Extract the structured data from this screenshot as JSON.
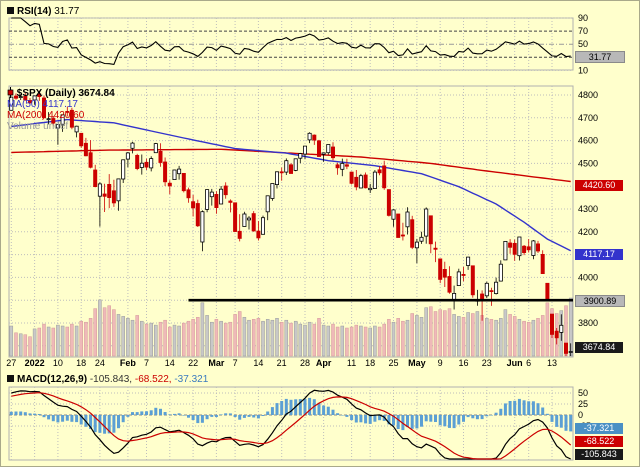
{
  "rsi_panel": {
    "label": "RSI(14)",
    "value": "31.77",
    "axis_ticks": [
      90,
      70,
      50,
      30,
      10
    ],
    "box_value": "31.77",
    "overbought": 70,
    "oversold": 30
  },
  "main_panel": {
    "symbol": "$SPX (Daily)",
    "last_value": "3674.84",
    "ma50_label": "MA(50) 4117.17",
    "ma200_label": "MA(200) 4420.60",
    "volume_label": "Volume undef",
    "axis_ticks": [
      4800,
      4700,
      4600,
      4500,
      4400,
      4300,
      4200,
      4100,
      4000,
      3900,
      3800,
      3700
    ],
    "boxes": {
      "ma200": "4420.60",
      "ma50": "4117.17",
      "trendline": "3900.89",
      "last": "3674.84"
    }
  },
  "macd_panel": {
    "label": "MACD(12,26,9)",
    "macd_value": "-105.843,",
    "signal_value": "-68.522,",
    "hist_value": "-37.321",
    "axis_ticks": [
      50,
      25,
      0,
      -25
    ],
    "boxes": {
      "hist": "-37.321",
      "signal": "-68.522",
      "macd": "-105.843"
    }
  },
  "x_axis": {
    "ticks": [
      {
        "label": "27",
        "index": 0
      },
      {
        "label": "2022",
        "index": 5
      },
      {
        "label": "10",
        "index": 10
      },
      {
        "label": "18",
        "index": 15
      },
      {
        "label": "24",
        "index": 19
      },
      {
        "label": "Feb",
        "index": 25
      },
      {
        "label": "7",
        "index": 29
      },
      {
        "label": "14",
        "index": 34
      },
      {
        "label": "22",
        "index": 39
      },
      {
        "label": "Mar",
        "index": 44
      },
      {
        "label": "7",
        "index": 48
      },
      {
        "label": "14",
        "index": 53
      },
      {
        "label": "21",
        "index": 58
      },
      {
        "label": "28",
        "index": 63
      },
      {
        "label": "Apr",
        "index": 67
      },
      {
        "label": "11",
        "index": 73
      },
      {
        "label": "18",
        "index": 77
      },
      {
        "label": "25",
        "index": 82
      },
      {
        "label": "May",
        "index": 87
      },
      {
        "label": "9",
        "index": 92
      },
      {
        "label": "16",
        "index": 97
      },
      {
        "label": "23",
        "index": 102
      },
      {
        "label": "Jun",
        "index": 108
      },
      {
        "label": "6",
        "index": 111
      },
      {
        "label": "13",
        "index": 116
      }
    ]
  },
  "chart_data": {
    "type": "candlestick",
    "symbol": "$SPX",
    "timeframe": "Daily",
    "last_close": 3674.84,
    "ylim": [
      3650,
      4830
    ],
    "indicators": {
      "rsi": {
        "period": 14,
        "current": 31.77
      },
      "ma50": {
        "current": 4117.17
      },
      "ma200": {
        "current": 4420.6
      },
      "macd": {
        "params": [
          12,
          26,
          9
        ],
        "macd": -105.843,
        "signal": -68.522,
        "hist": -37.321
      }
    },
    "colors": {
      "background": "#ffffcc",
      "candle_up": "#ffffff",
      "candle_down": "#cc0000",
      "volume_up": "#c8c8c8",
      "volume_down": "#efb9b9",
      "ma50": "#3333cc",
      "ma200": "#cc0000",
      "macd_hist": "#5b9fd4",
      "macd_line": "#000000",
      "macd_signal": "#cc0000"
    },
    "annotation": {
      "level": 3900,
      "start_index": 38
    },
    "ma50_keyframes": [
      [
        0,
        4662
      ],
      [
        12,
        4692
      ],
      [
        22,
        4678
      ],
      [
        35,
        4620
      ],
      [
        48,
        4565
      ],
      [
        59,
        4545
      ],
      [
        68,
        4512
      ],
      [
        78,
        4490
      ],
      [
        88,
        4455
      ],
      [
        96,
        4398
      ],
      [
        104,
        4322
      ],
      [
        110,
        4242
      ],
      [
        115,
        4168
      ],
      [
        120,
        4117.17
      ]
    ],
    "ma200_keyframes": [
      [
        0,
        4548
      ],
      [
        20,
        4558
      ],
      [
        45,
        4562
      ],
      [
        60,
        4545
      ],
      [
        75,
        4528
      ],
      [
        90,
        4500
      ],
      [
        100,
        4472
      ],
      [
        110,
        4446
      ],
      [
        120,
        4420.6
      ]
    ],
    "candles": [
      [
        4733,
        4792,
        4733,
        4791
      ],
      [
        4795,
        4807,
        4780,
        4786
      ],
      [
        4789,
        4804,
        4778,
        4793
      ],
      [
        4794,
        4809,
        4775,
        4778
      ],
      [
        4776,
        4787,
        4760,
        4766
      ],
      [
        4778,
        4797,
        4758,
        4796
      ],
      [
        4804,
        4819,
        4774,
        4793
      ],
      [
        4787,
        4798,
        4700,
        4700
      ],
      [
        4693,
        4725,
        4671,
        4696
      ],
      [
        4697,
        4708,
        4663,
        4677
      ],
      [
        4655,
        4673,
        4582,
        4670
      ],
      [
        4669,
        4714,
        4638,
        4713
      ],
      [
        4728,
        4749,
        4706,
        4726
      ],
      [
        4733,
        4744,
        4650,
        4659
      ],
      [
        4638,
        4665,
        4614,
        4663
      ],
      [
        4632,
        4633,
        4568,
        4577
      ],
      [
        4588,
        4612,
        4531,
        4533
      ],
      [
        4547,
        4602,
        4478,
        4483
      ],
      [
        4471,
        4494,
        4395,
        4398
      ],
      [
        4356,
        4417,
        4223,
        4410
      ],
      [
        4366,
        4411,
        4287,
        4356
      ],
      [
        4408,
        4453,
        4304,
        4350
      ],
      [
        4380,
        4428,
        4309,
        4327
      ],
      [
        4336,
        4432,
        4292,
        4432
      ],
      [
        4432,
        4516,
        4414,
        4516
      ],
      [
        4519,
        4550,
        4483,
        4546
      ],
      [
        4566,
        4595,
        4544,
        4589
      ],
      [
        4535,
        4542,
        4470,
        4477
      ],
      [
        4482,
        4539,
        4451,
        4501
      ],
      [
        4505,
        4521,
        4471,
        4484
      ],
      [
        4480,
        4531,
        4465,
        4521
      ],
      [
        4547,
        4590,
        4547,
        4587
      ],
      [
        4553,
        4588,
        4485,
        4504
      ],
      [
        4506,
        4526,
        4401,
        4419
      ],
      [
        4413,
        4426,
        4365,
        4401
      ],
      [
        4429,
        4472,
        4429,
        4471
      ],
      [
        4455,
        4489,
        4429,
        4475
      ],
      [
        4456,
        4456,
        4373,
        4380
      ],
      [
        4384,
        4394,
        4327,
        4349
      ],
      [
        4332,
        4362,
        4267,
        4305
      ],
      [
        4324,
        4341,
        4221,
        4226
      ],
      [
        4155,
        4294,
        4115,
        4288
      ],
      [
        4298,
        4385,
        4286,
        4385
      ],
      [
        4354,
        4388,
        4315,
        4374
      ],
      [
        4364,
        4378,
        4279,
        4306
      ],
      [
        4322,
        4401,
        4322,
        4387
      ],
      [
        4401,
        4417,
        4345,
        4363
      ],
      [
        4335,
        4342,
        4285,
        4329
      ],
      [
        4327,
        4327,
        4199,
        4201
      ],
      [
        4202,
        4277,
        4158,
        4171
      ],
      [
        4223,
        4288,
        4223,
        4278
      ],
      [
        4252,
        4269,
        4210,
        4260
      ],
      [
        4280,
        4291,
        4200,
        4204
      ],
      [
        4203,
        4247,
        4162,
        4173
      ],
      [
        4189,
        4271,
        4188,
        4262
      ],
      [
        4288,
        4358,
        4251,
        4358
      ],
      [
        4346,
        4412,
        4336,
        4412
      ],
      [
        4407,
        4465,
        4390,
        4463
      ],
      [
        4463,
        4482,
        4424,
        4461
      ],
      [
        4462,
        4522,
        4449,
        4512
      ],
      [
        4494,
        4501,
        4456,
        4456
      ],
      [
        4469,
        4520,
        4466,
        4520
      ],
      [
        4523,
        4546,
        4501,
        4543
      ],
      [
        4541,
        4576,
        4518,
        4576
      ],
      [
        4603,
        4637,
        4589,
        4632
      ],
      [
        4624,
        4627,
        4581,
        4602
      ],
      [
        4599,
        4603,
        4530,
        4530
      ],
      [
        4540,
        4548,
        4507,
        4546
      ],
      [
        4547,
        4583,
        4539,
        4583
      ],
      [
        4572,
        4593,
        4514,
        4525
      ],
      [
        4494,
        4503,
        4450,
        4481
      ],
      [
        4474,
        4521,
        4444,
        4500
      ],
      [
        4494,
        4520,
        4475,
        4488
      ],
      [
        4462,
        4464,
        4408,
        4413
      ],
      [
        4439,
        4471,
        4382,
        4397
      ],
      [
        4392,
        4454,
        4392,
        4446
      ],
      [
        4449,
        4460,
        4390,
        4393
      ],
      [
        4385,
        4410,
        4370,
        4391
      ],
      [
        4390,
        4471,
        4390,
        4462
      ],
      [
        4472,
        4488,
        4448,
        4459
      ],
      [
        4489,
        4512,
        4384,
        4393
      ],
      [
        4385,
        4385,
        4267,
        4272
      ],
      [
        4255,
        4299,
        4222,
        4296
      ],
      [
        4278,
        4278,
        4175,
        4175
      ],
      [
        4186,
        4240,
        4162,
        4184
      ],
      [
        4222,
        4308,
        4188,
        4287
      ],
      [
        4253,
        4270,
        4124,
        4132
      ],
      [
        4130,
        4169,
        4062,
        4155
      ],
      [
        4159,
        4200,
        4147,
        4176
      ],
      [
        4181,
        4307,
        4148,
        4300
      ],
      [
        4270,
        4270,
        4106,
        4147
      ],
      [
        4128,
        4157,
        4067,
        4123
      ],
      [
        4081,
        4081,
        3975,
        3991
      ],
      [
        4035,
        4069,
        3958,
        4001
      ],
      [
        4004,
        4049,
        3928,
        3935
      ],
      [
        3903,
        3964,
        3859,
        3930
      ],
      [
        3964,
        4038,
        3963,
        4024
      ],
      [
        4013,
        4046,
        3983,
        4008
      ],
      [
        4052,
        4090,
        4033,
        4089
      ],
      [
        4051,
        4051,
        3911,
        3924
      ],
      [
        3899,
        3945,
        3876,
        3900
      ],
      [
        3927,
        3943,
        3810,
        3901
      ],
      [
        3919,
        3981,
        3909,
        3974
      ],
      [
        3942,
        3955,
        3875,
        3941
      ],
      [
        3929,
        3999,
        3925,
        3979
      ],
      [
        3984,
        4075,
        3984,
        4058
      ],
      [
        4077,
        4158,
        4077,
        4158
      ],
      [
        4151,
        4168,
        4104,
        4132
      ],
      [
        4149,
        4166,
        4073,
        4101
      ],
      [
        4095,
        4177,
        4074,
        4177
      ],
      [
        4137,
        4142,
        4098,
        4109
      ],
      [
        4134,
        4168,
        4109,
        4121
      ],
      [
        4096,
        4164,
        4080,
        4160
      ],
      [
        4147,
        4160,
        4107,
        4116
      ],
      [
        4101,
        4119,
        4017,
        4017
      ],
      [
        3974,
        3975,
        3900,
        3901
      ],
      [
        3839,
        3839,
        3734,
        3750
      ],
      [
        3764,
        3778,
        3706,
        3735
      ],
      [
        3759,
        3838,
        3722,
        3790
      ],
      [
        3712,
        3712,
        3639,
        3667
      ],
      [
        3672,
        3711,
        3637,
        3675
      ]
    ],
    "volume": [
      3.1,
      2.4,
      2.3,
      2.2,
      2.0,
      2.8,
      2.9,
      3.3,
      3.0,
      2.9,
      3.2,
      3.1,
      3.0,
      3.3,
      3.1,
      3.6,
      3.5,
      3.9,
      4.9,
      5.8,
      5.0,
      5.2,
      4.8,
      4.3,
      4.1,
      3.9,
      3.7,
      4.2,
      3.6,
      3.3,
      3.4,
      3.2,
      3.5,
      3.7,
      3.0,
      3.2,
      3.1,
      3.4,
      3.6,
      3.8,
      4.0,
      5.5,
      4.2,
      3.5,
      3.8,
      3.6,
      3.4,
      3.5,
      4.3,
      4.6,
      4.0,
      3.7,
      3.8,
      3.9,
      3.6,
      3.8,
      3.7,
      3.9,
      3.5,
      3.7,
      3.4,
      3.6,
      3.3,
      3.2,
      3.5,
      3.3,
      3.9,
      3.2,
      3.1,
      3.3,
      3.0,
      3.1,
      2.9,
      3.0,
      3.2,
      3.1,
      3.0,
      2.9,
      3.1,
      3.0,
      3.3,
      3.8,
      3.5,
      3.9,
      3.6,
      3.7,
      4.4,
      4.2,
      4.0,
      5.0,
      5.1,
      4.6,
      4.8,
      4.7,
      4.9,
      4.3,
      4.1,
      4.0,
      4.5,
      4.4,
      4.6,
      4.2,
      3.9,
      3.8,
      3.7,
      3.9,
      4.8,
      4.3,
      4.1,
      3.8,
      3.6,
      3.5,
      3.7,
      3.9,
      4.2,
      5.5,
      4.9,
      4.4,
      4.7,
      5.2,
      6.0
    ]
  }
}
